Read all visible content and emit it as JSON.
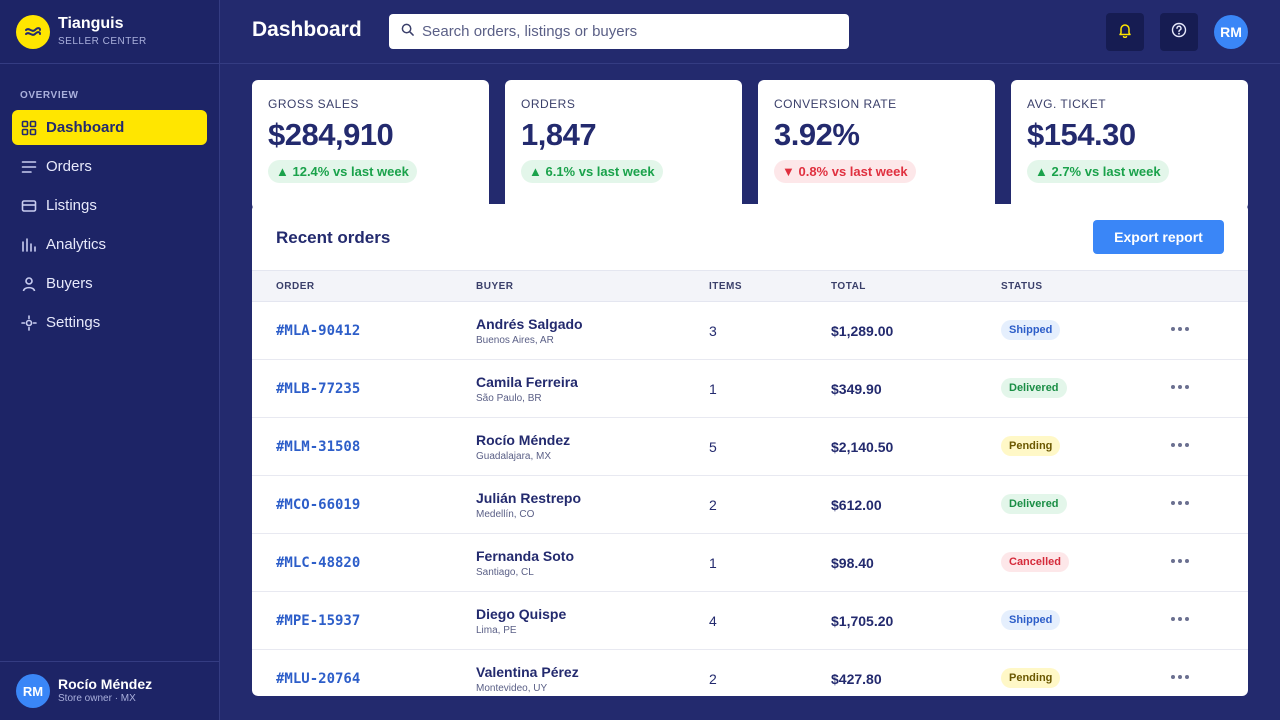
{
  "brand": {
    "name": "Tianguis",
    "subtitle": "SELLER CENTER"
  },
  "sidebar": {
    "section_label": "OVERVIEW",
    "items": [
      {
        "label": "Dashboard",
        "icon": "grid-icon",
        "active": true
      },
      {
        "label": "Orders",
        "icon": "list-icon"
      },
      {
        "label": "Listings",
        "icon": "card-icon"
      },
      {
        "label": "Analytics",
        "icon": "bar-chart-icon"
      },
      {
        "label": "Buyers",
        "icon": "user-icon"
      },
      {
        "label": "Settings",
        "icon": "settings-icon"
      }
    ],
    "user": {
      "initials": "RM",
      "name": "Rocío Méndez",
      "role": "Store owner · MX"
    }
  },
  "header": {
    "title": "Dashboard",
    "search_placeholder": "Search orders, listings or buyers",
    "avatar_initials": "RM"
  },
  "kpis": [
    {
      "label": "GROSS SALES",
      "value": "$284,910",
      "delta": "▲ 12.4% vs last week",
      "trend": "up"
    },
    {
      "label": "ORDERS",
      "value": "1,847",
      "delta": "▲ 6.1% vs last week",
      "trend": "up"
    },
    {
      "label": "CONVERSION RATE",
      "value": "3.92%",
      "delta": "▼ 0.8% vs last week",
      "trend": "down"
    },
    {
      "label": "AVG. TICKET",
      "value": "$154.30",
      "delta": "▲ 2.7% vs last week",
      "trend": "up"
    }
  ],
  "orders": {
    "title": "Recent orders",
    "export_label": "Export report",
    "columns": [
      "ORDER",
      "BUYER",
      "ITEMS",
      "TOTAL",
      "STATUS"
    ],
    "rows": [
      {
        "id": "#MLA-90412",
        "buyer": "Andrés Salgado",
        "location": "Buenos Aires, AR",
        "items": "3",
        "total": "$1,289.00",
        "status": "Shipped"
      },
      {
        "id": "#MLB-77235",
        "buyer": "Camila Ferreira",
        "location": "São Paulo, BR",
        "items": "1",
        "total": "$349.90",
        "status": "Delivered"
      },
      {
        "id": "#MLM-31508",
        "buyer": "Rocío Méndez",
        "location": "Guadalajara, MX",
        "items": "5",
        "total": "$2,140.50",
        "status": "Pending"
      },
      {
        "id": "#MCO-66019",
        "buyer": "Julián Restrepo",
        "location": "Medellín, CO",
        "items": "2",
        "total": "$612.00",
        "status": "Delivered"
      },
      {
        "id": "#MLC-48820",
        "buyer": "Fernanda Soto",
        "location": "Santiago, CL",
        "items": "1",
        "total": "$98.40",
        "status": "Cancelled"
      },
      {
        "id": "#MPE-15937",
        "buyer": "Diego Quispe",
        "location": "Lima, PE",
        "items": "4",
        "total": "$1,705.20",
        "status": "Shipped"
      },
      {
        "id": "#MLU-20764",
        "buyer": "Valentina Pérez",
        "location": "Montevideo, UY",
        "items": "2",
        "total": "$427.80",
        "status": "Pending"
      }
    ]
  },
  "colors": {
    "brand_yellow": "#ffe600",
    "navy": "#232a6e",
    "accent_blue": "#3a86f7"
  }
}
